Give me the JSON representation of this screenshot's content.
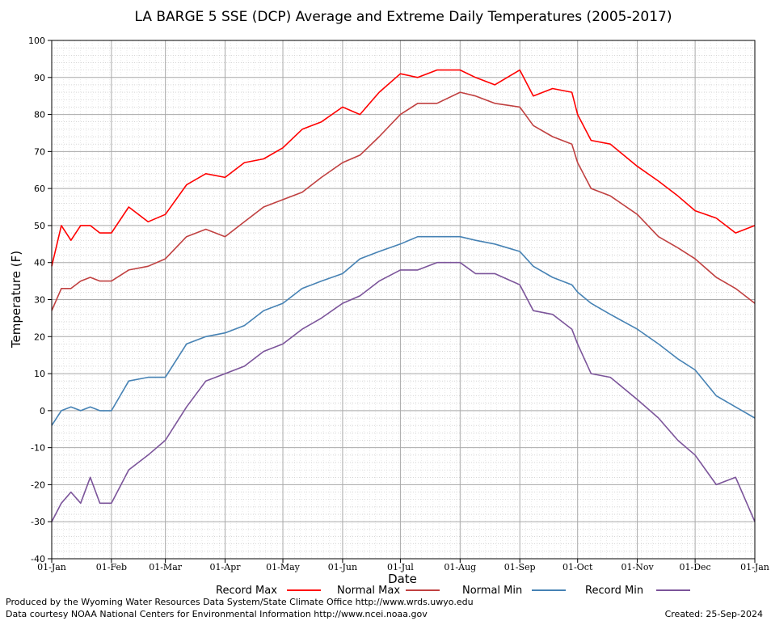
{
  "chart_data": {
    "type": "line",
    "title": "LA BARGE 5 SSE (DCP) Average and Extreme Daily Temperatures (2005-2017)",
    "xlabel": "Date",
    "ylabel": "Temperature (F)",
    "ylim": [
      -40,
      100
    ],
    "yticks": [
      -40,
      -30,
      -20,
      -10,
      0,
      10,
      20,
      30,
      40,
      50,
      60,
      70,
      80,
      90,
      100
    ],
    "xticks": [
      "01-Jan",
      "01-Feb",
      "01-Mar",
      "01-Apr",
      "01-May",
      "01-Jun",
      "01-Jul",
      "01-Aug",
      "01-Sep",
      "01-Oct",
      "01-Nov",
      "01-Dec",
      "01-Jan"
    ],
    "xtick_days": [
      0,
      31,
      59,
      90,
      120,
      151,
      181,
      212,
      243,
      273,
      304,
      334,
      365
    ],
    "grid": true,
    "legend_position": "bottom",
    "series": [
      {
        "name": "Record Max",
        "color": "#ff0000",
        "days": [
          0,
          5,
          10,
          15,
          20,
          25,
          31,
          40,
          50,
          59,
          70,
          80,
          90,
          100,
          110,
          120,
          130,
          140,
          151,
          160,
          170,
          181,
          190,
          200,
          212,
          220,
          230,
          243,
          250,
          260,
          270,
          273,
          280,
          290,
          304,
          315,
          325,
          334,
          345,
          355,
          365
        ],
        "values": [
          39,
          50,
          46,
          50,
          50,
          48,
          48,
          55,
          51,
          53,
          61,
          64,
          63,
          67,
          68,
          71,
          76,
          78,
          82,
          80,
          86,
          91,
          90,
          92,
          92,
          90,
          88,
          92,
          85,
          87,
          86,
          80,
          73,
          72,
          66,
          62,
          58,
          54,
          52,
          48,
          50
        ]
      },
      {
        "name": "Normal Max",
        "color": "#c04040",
        "days": [
          0,
          5,
          10,
          15,
          20,
          25,
          31,
          40,
          50,
          59,
          70,
          80,
          90,
          100,
          110,
          120,
          130,
          140,
          151,
          160,
          170,
          181,
          190,
          200,
          212,
          220,
          230,
          243,
          250,
          260,
          270,
          273,
          280,
          290,
          304,
          315,
          325,
          334,
          345,
          355,
          365
        ],
        "values": [
          27,
          33,
          33,
          35,
          36,
          35,
          35,
          38,
          39,
          41,
          47,
          49,
          47,
          51,
          55,
          57,
          59,
          63,
          67,
          69,
          74,
          80,
          83,
          83,
          86,
          85,
          83,
          82,
          77,
          74,
          72,
          67,
          60,
          58,
          53,
          47,
          44,
          41,
          36,
          33,
          29
        ]
      },
      {
        "name": "Normal Min",
        "color": "#4682b4",
        "days": [
          0,
          5,
          10,
          15,
          20,
          25,
          31,
          40,
          50,
          59,
          70,
          80,
          90,
          100,
          110,
          120,
          130,
          140,
          151,
          160,
          170,
          181,
          190,
          200,
          212,
          220,
          230,
          243,
          250,
          260,
          270,
          273,
          280,
          290,
          304,
          315,
          325,
          334,
          345,
          355,
          365
        ],
        "values": [
          -4,
          0,
          1,
          0,
          1,
          0,
          0,
          8,
          9,
          9,
          18,
          20,
          21,
          23,
          27,
          29,
          33,
          35,
          37,
          41,
          43,
          45,
          47,
          47,
          47,
          46,
          45,
          43,
          39,
          36,
          34,
          32,
          29,
          26,
          22,
          18,
          14,
          11,
          4,
          1,
          -2
        ]
      },
      {
        "name": "Record Min",
        "color": "#7b549a",
        "days": [
          0,
          5,
          10,
          15,
          20,
          25,
          31,
          40,
          50,
          59,
          70,
          80,
          90,
          100,
          110,
          120,
          130,
          140,
          151,
          160,
          170,
          181,
          190,
          200,
          212,
          220,
          230,
          243,
          250,
          260,
          270,
          273,
          280,
          290,
          304,
          315,
          325,
          334,
          345,
          355,
          365
        ],
        "values": [
          -30,
          -25,
          -22,
          -25,
          -18,
          -25,
          -25,
          -16,
          -12,
          -8,
          1,
          8,
          10,
          12,
          16,
          18,
          22,
          25,
          29,
          31,
          35,
          38,
          38,
          40,
          40,
          37,
          37,
          34,
          27,
          26,
          22,
          18,
          10,
          9,
          3,
          -2,
          -8,
          -12,
          -20,
          -18,
          -30
        ]
      }
    ]
  },
  "footer": {
    "produced_by": "Produced by the Wyoming Water Resources Data System/State Climate Office http://www.wrds.uwyo.edu",
    "data_courtesy": "Data courtesy NOAA National Centers for Environmental Information http://www.ncei.noaa.gov",
    "created": "Created:  25-Sep-2024"
  }
}
